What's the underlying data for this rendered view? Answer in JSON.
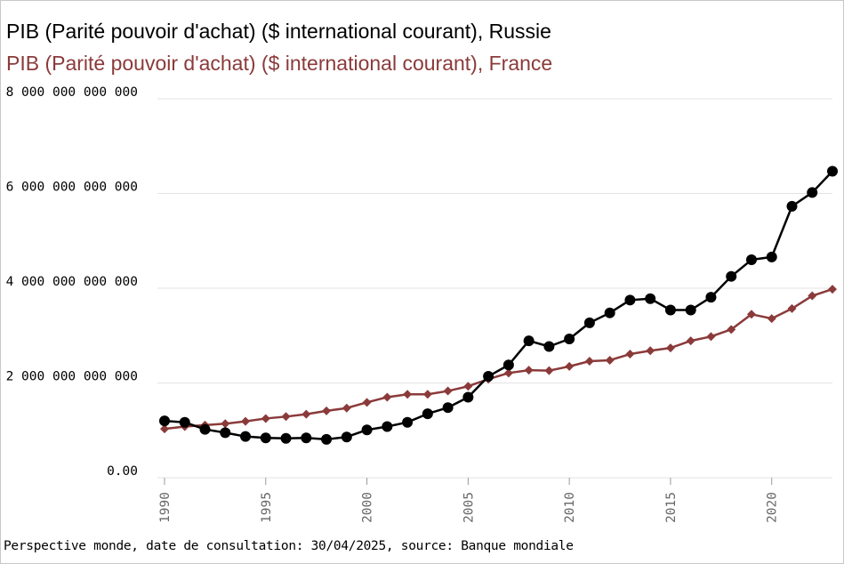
{
  "chart_data": {
    "type": "line",
    "title_lines": [
      "PIB (Parité pouvoir d'achat) ($ international courant), Russie",
      "PIB (Parité pouvoir d'achat) ($ international courant), France"
    ],
    "y_ticks": [
      {
        "value": 0,
        "label": "0.00"
      },
      {
        "value": 2000000000000,
        "label": "2 000 000 000 000"
      },
      {
        "value": 4000000000000,
        "label": "4 000 000 000 000"
      },
      {
        "value": 6000000000000,
        "label": "6 000 000 000 000"
      },
      {
        "value": 8000000000000,
        "label": "8 000 000 000 000"
      }
    ],
    "x_ticks": [
      1990,
      1995,
      2000,
      2005,
      2010,
      2015,
      2020
    ],
    "xlim": [
      1990,
      2023
    ],
    "ylim": [
      0,
      8000000000000
    ],
    "grid": true,
    "x": [
      1990,
      1991,
      1992,
      1993,
      1994,
      1995,
      1996,
      1997,
      1998,
      1999,
      2000,
      2001,
      2002,
      2003,
      2004,
      2005,
      2006,
      2007,
      2008,
      2009,
      2010,
      2011,
      2012,
      2013,
      2014,
      2015,
      2016,
      2017,
      2018,
      2019,
      2020,
      2021,
      2022,
      2023
    ],
    "series": [
      {
        "name": "Russie",
        "color": "#000000",
        "marker": "circle",
        "values": [
          1200000000000,
          1170000000000,
          1020000000000,
          950000000000,
          870000000000,
          840000000000,
          830000000000,
          840000000000,
          810000000000,
          860000000000,
          1010000000000,
          1080000000000,
          1170000000000,
          1350000000000,
          1480000000000,
          1700000000000,
          2140000000000,
          2380000000000,
          2890000000000,
          2770000000000,
          2930000000000,
          3270000000000,
          3480000000000,
          3750000000000,
          3780000000000,
          3540000000000,
          3540000000000,
          3810000000000,
          4250000000000,
          4600000000000,
          4660000000000,
          5730000000000,
          6020000000000,
          6470000000000
        ]
      },
      {
        "name": "France",
        "color": "#8b3a3a",
        "marker": "diamond",
        "values": [
          1030000000000,
          1080000000000,
          1110000000000,
          1140000000000,
          1190000000000,
          1250000000000,
          1290000000000,
          1340000000000,
          1410000000000,
          1470000000000,
          1590000000000,
          1700000000000,
          1760000000000,
          1760000000000,
          1830000000000,
          1930000000000,
          2080000000000,
          2210000000000,
          2270000000000,
          2260000000000,
          2350000000000,
          2460000000000,
          2480000000000,
          2610000000000,
          2680000000000,
          2740000000000,
          2890000000000,
          2980000000000,
          3130000000000,
          3450000000000,
          3360000000000,
          3570000000000,
          3840000000000,
          3980000000000
        ]
      }
    ]
  },
  "footer": "Perspective monde, date de consultation: 30/04/2025, source: Banque mondiale"
}
